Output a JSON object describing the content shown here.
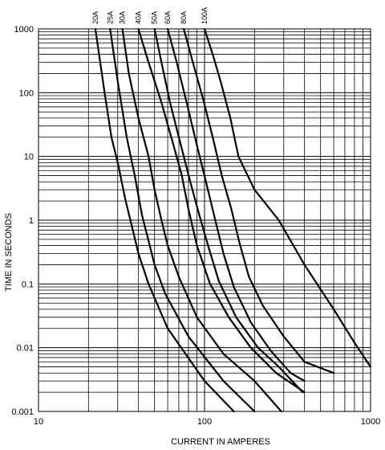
{
  "chart_data": {
    "type": "line",
    "title": "",
    "xlabel": "CURRENT IN AMPERES",
    "ylabel": "TIME IN SECONDS",
    "x_scale": "log",
    "y_scale": "log",
    "xlim": [
      10,
      1000
    ],
    "ylim": [
      0.001,
      1000
    ],
    "grid": true,
    "legend": "series labels rotated along top edge",
    "x_ticks": [
      {
        "value": 10,
        "label": "10"
      },
      {
        "value": 100,
        "label": "100"
      },
      {
        "value": 1000,
        "label": "1000"
      }
    ],
    "y_ticks": [
      {
        "value": 1000,
        "label": "1000"
      },
      {
        "value": 100,
        "label": "100"
      },
      {
        "value": 10,
        "label": "10"
      },
      {
        "value": 1,
        "label": "1"
      },
      {
        "value": 0.1,
        "label": "0.1"
      },
      {
        "value": 0.01,
        "label": "0.01"
      },
      {
        "value": 0.001,
        "label": "0.001"
      }
    ],
    "series": [
      {
        "name": "20A",
        "points": [
          [
            22,
            1000
          ],
          [
            25,
            100
          ],
          [
            27.5,
            20
          ],
          [
            30,
            8
          ],
          [
            33.5,
            2
          ],
          [
            37,
            0.7
          ],
          [
            40,
            0.3
          ],
          [
            46,
            0.1
          ],
          [
            60,
            0.02
          ],
          [
            100,
            0.003
          ],
          [
            150,
            0.001
          ]
        ]
      },
      {
        "name": "25A",
        "points": [
          [
            27,
            1000
          ],
          [
            30,
            150
          ],
          [
            34,
            20
          ],
          [
            38,
            5
          ],
          [
            42,
            1.2
          ],
          [
            45,
            0.6
          ],
          [
            50,
            0.2
          ],
          [
            58,
            0.07
          ],
          [
            80,
            0.015
          ],
          [
            130,
            0.003
          ],
          [
            200,
            0.001
          ]
        ]
      },
      {
        "name": "30A",
        "points": [
          [
            32,
            1000
          ],
          [
            35,
            200
          ],
          [
            40,
            40
          ],
          [
            46,
            10
          ],
          [
            50,
            3
          ],
          [
            55,
            1
          ],
          [
            60,
            0.4
          ],
          [
            70,
            0.13
          ],
          [
            90,
            0.03
          ],
          [
            130,
            0.008
          ],
          [
            200,
            0.003
          ],
          [
            290,
            0.001
          ]
        ]
      },
      {
        "name": "40A",
        "points": [
          [
            40,
            1000
          ],
          [
            46,
            300
          ],
          [
            55,
            70
          ],
          [
            65,
            15
          ],
          [
            73,
            5
          ],
          [
            80,
            1.5
          ],
          [
            90,
            0.4
          ],
          [
            108,
            0.1
          ],
          [
            140,
            0.03
          ],
          [
            190,
            0.01
          ],
          [
            270,
            0.004
          ],
          [
            400,
            0.002
          ]
        ]
      },
      {
        "name": "50A",
        "points": [
          [
            50,
            1000
          ],
          [
            55,
            300
          ],
          [
            62,
            70
          ],
          [
            72,
            15
          ],
          [
            82,
            4
          ],
          [
            93,
            1.2
          ],
          [
            105,
            0.4
          ],
          [
            122,
            0.11
          ],
          [
            155,
            0.03
          ],
          [
            210,
            0.01
          ],
          [
            280,
            0.005
          ],
          [
            390,
            0.002
          ]
        ]
      },
      {
        "name": "60A",
        "points": [
          [
            60,
            1000
          ],
          [
            68,
            300
          ],
          [
            78,
            70
          ],
          [
            90,
            15
          ],
          [
            102,
            4
          ],
          [
            115,
            1.1
          ],
          [
            130,
            0.3
          ],
          [
            150,
            0.09
          ],
          [
            190,
            0.025
          ],
          [
            250,
            0.009
          ],
          [
            330,
            0.004
          ],
          [
            400,
            0.003
          ]
        ]
      },
      {
        "name": "80A",
        "points": [
          [
            75,
            1000
          ],
          [
            85,
            300
          ],
          [
            98,
            80
          ],
          [
            112,
            20
          ],
          [
            127,
            5
          ],
          [
            145,
            1.5
          ],
          [
            162,
            0.45
          ],
          [
            185,
            0.13
          ],
          [
            225,
            0.045
          ],
          [
            300,
            0.015
          ],
          [
            400,
            0.006
          ],
          [
            600,
            0.004
          ]
        ]
      },
      {
        "name": "100A",
        "points": [
          [
            100,
            1000
          ],
          [
            112,
            400
          ],
          [
            125,
            150
          ],
          [
            143,
            40
          ],
          [
            160,
            10
          ],
          [
            200,
            3
          ],
          [
            280,
            1
          ],
          [
            400,
            0.2
          ],
          [
            600,
            0.04
          ],
          [
            800,
            0.012
          ],
          [
            1000,
            0.005
          ]
        ]
      }
    ]
  }
}
